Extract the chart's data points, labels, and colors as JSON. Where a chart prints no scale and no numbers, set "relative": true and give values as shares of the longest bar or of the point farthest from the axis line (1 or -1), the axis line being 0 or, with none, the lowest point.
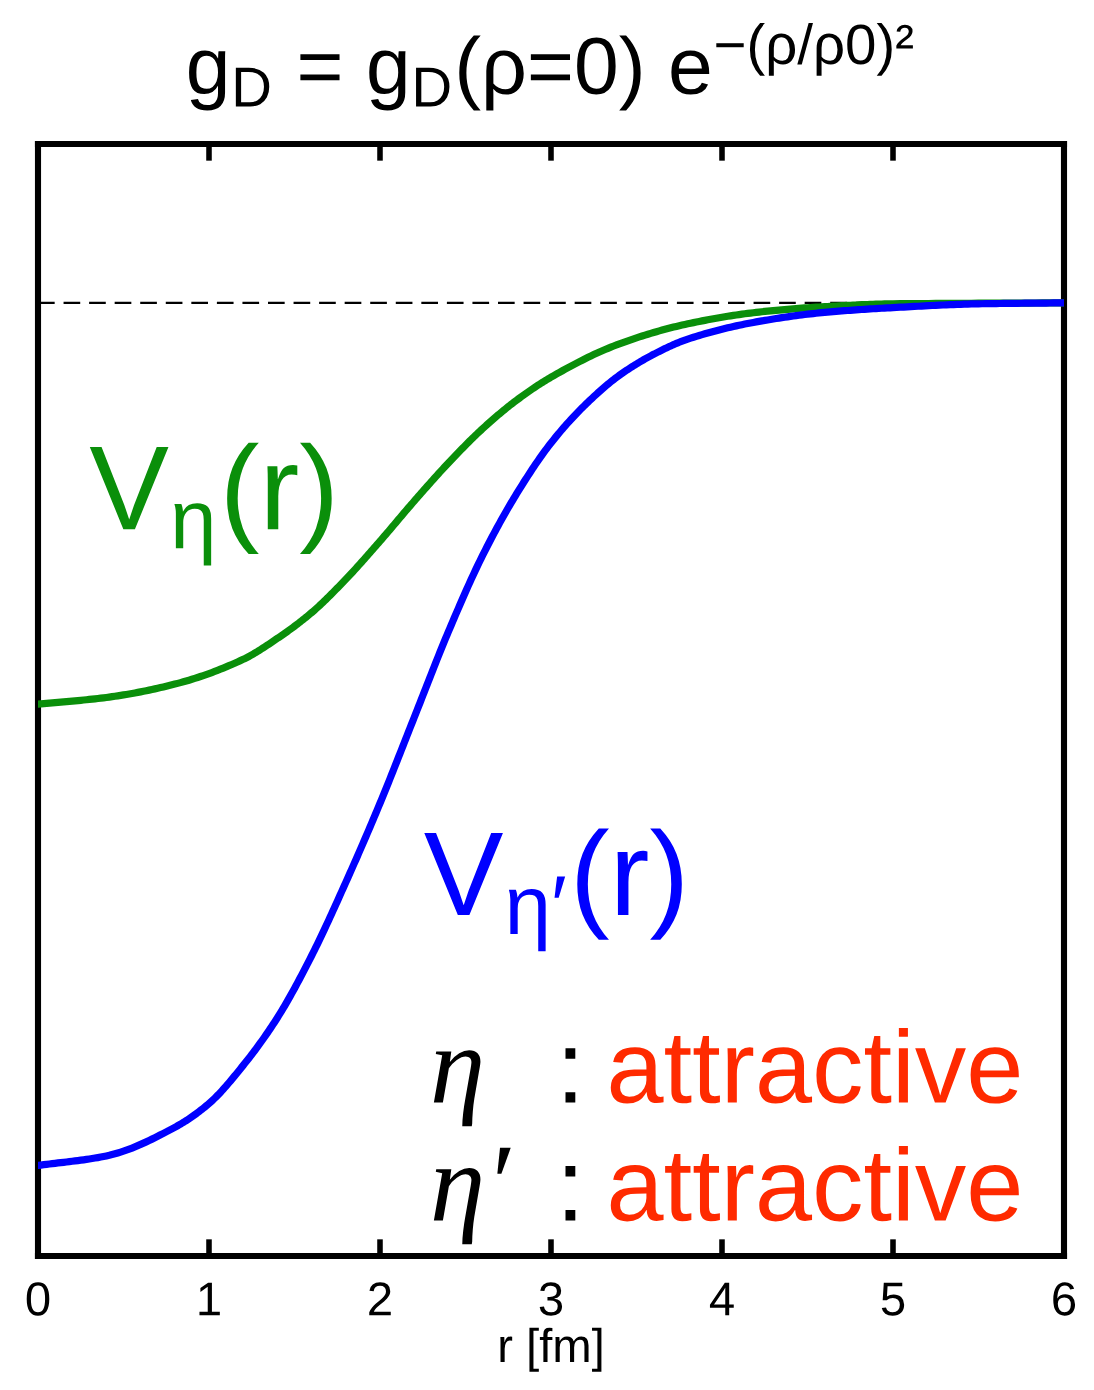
{
  "chart_data": {
    "type": "line",
    "title": "g$_{D}$ = g$_{D}$(ρ=0) e$^{−(ρ/ρ0)²}$",
    "xlabel": "r [fm]",
    "relative": true,
    "tick_labels": "x",
    "xlim": [
      0,
      6
    ],
    "xticks": [
      0,
      1,
      2,
      3,
      4,
      5,
      6
    ],
    "line_style": "solid",
    "series": [
      {
        "name": "V$_{η}$(r)",
        "color": "#0a8f0a",
        "x": [
          0,
          0.4,
          0.8,
          1.2,
          1.4,
          1.6,
          1.8,
          2.0,
          2.2,
          2.4,
          2.6,
          2.8,
          3.0,
          3.4,
          3.8,
          4.2,
          4.6,
          5.0,
          6.0
        ],
        "values": [
          0.579,
          0.586,
          0.6,
          0.626,
          0.648,
          0.675,
          0.71,
          0.75,
          0.792,
          0.832,
          0.868,
          0.898,
          0.922,
          0.957,
          0.978,
          0.99,
          0.996,
          0.999,
          1.0
        ]
      },
      {
        "name": "V$_{η′}$(r)",
        "color": "#0000ff",
        "x": [
          0,
          0.4,
          0.8,
          1.0,
          1.2,
          1.4,
          1.6,
          1.8,
          2.0,
          2.2,
          2.4,
          2.6,
          2.8,
          3.0,
          3.2,
          3.4,
          3.6,
          3.8,
          4.2,
          4.6,
          5.0,
          5.5,
          6.0
        ],
        "values": [
          0.095,
          0.105,
          0.135,
          0.16,
          0.2,
          0.25,
          0.315,
          0.392,
          0.475,
          0.565,
          0.655,
          0.735,
          0.8,
          0.853,
          0.893,
          0.924,
          0.946,
          0.962,
          0.98,
          0.99,
          0.995,
          0.999,
          1.0
        ]
      }
    ],
    "ref_lines": [
      {
        "axis": "y",
        "value": 1,
        "color": "#000000",
        "line_style": "dashed"
      }
    ],
    "annotations": [
      "η",
      ":",
      "attractive",
      "η′",
      ":",
      "attractive"
    ]
  }
}
